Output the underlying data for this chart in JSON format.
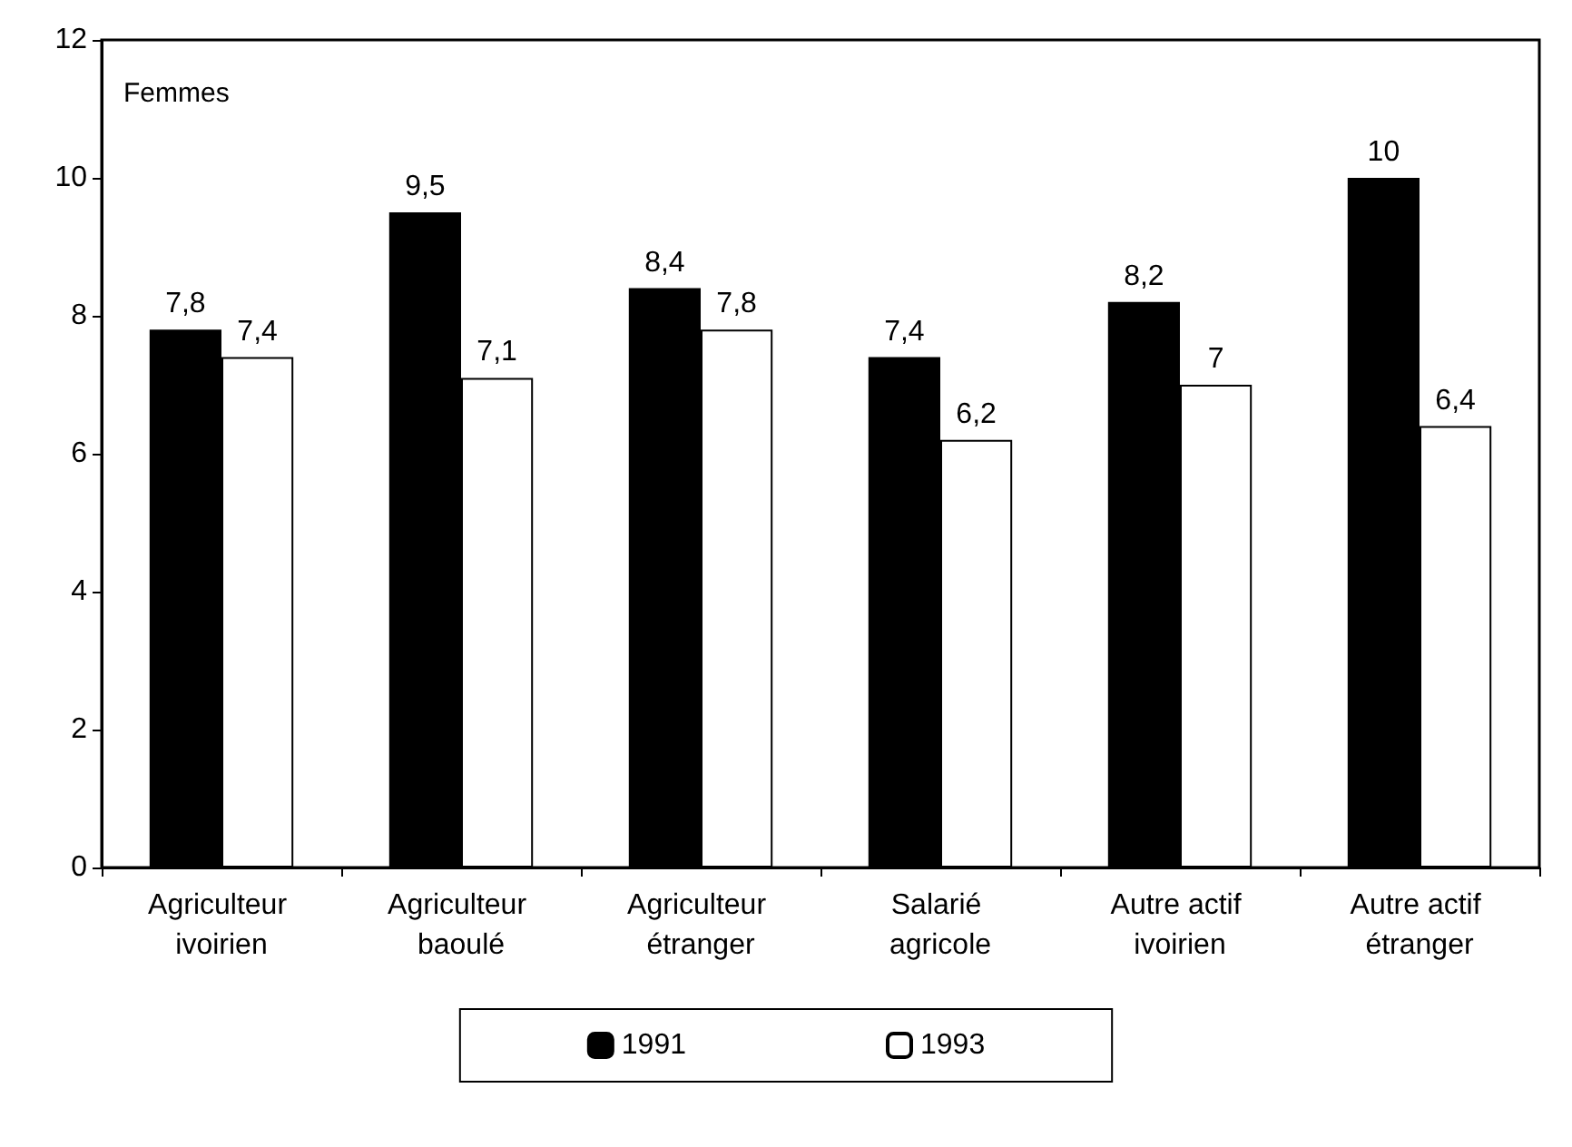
{
  "chart_data": {
    "type": "bar",
    "annotations": [
      "Femmes"
    ],
    "categories": [
      "Agriculteur ivoirien",
      "Agriculteur baoulé",
      "Agriculteur étranger",
      "Salarié agricole",
      "Autre actif ivoirien",
      "Autre actif étranger"
    ],
    "series": [
      {
        "name": "1991",
        "color": "#000000",
        "values": [
          7.8,
          9.5,
          8.4,
          7.4,
          8.2,
          10
        ],
        "value_labels": [
          "7,8",
          "9,5",
          "8,4",
          "7,4",
          "8,2",
          "10"
        ]
      },
      {
        "name": "1993",
        "color": "#ffffff",
        "values": [
          7.4,
          7.1,
          7.8,
          6.2,
          7,
          6.4
        ],
        "value_labels": [
          "7,4",
          "7,1",
          "7,8",
          "6,2",
          "7",
          "6,4"
        ]
      }
    ],
    "ylim": [
      0,
      12
    ],
    "yticks": [
      0,
      2,
      4,
      6,
      8,
      10,
      12
    ],
    "grid": false,
    "legend": "bottom"
  }
}
